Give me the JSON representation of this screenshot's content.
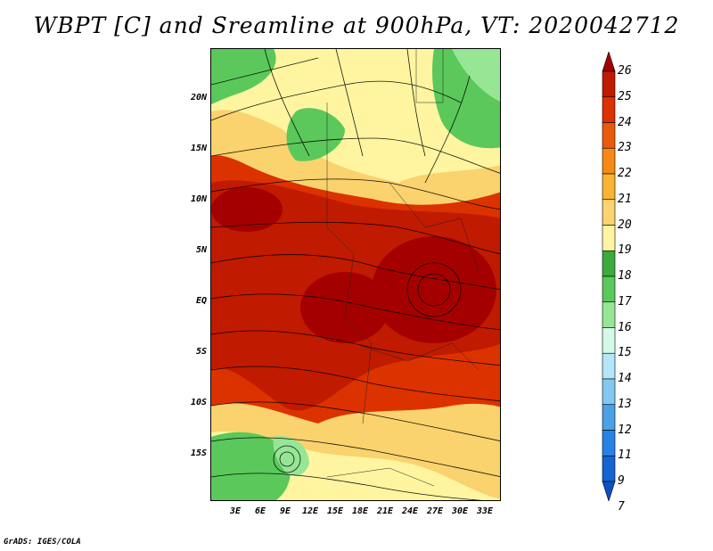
{
  "title": "WBPT [C] and Sreamline at 900hPa, VT: 2020042712",
  "lat_ticks": [
    "20N",
    "15N",
    "10N",
    "5N",
    "EQ",
    "5S",
    "10S",
    "15S"
  ],
  "lon_ticks": [
    "3E",
    "6E",
    "9E",
    "12E",
    "15E",
    "18E",
    "21E",
    "24E",
    "27E",
    "30E",
    "33E"
  ],
  "colorbar": {
    "levels": [
      "26",
      "25",
      "24",
      "23",
      "22",
      "21",
      "20",
      "19",
      "18",
      "17",
      "16",
      "15",
      "14",
      "13",
      "12",
      "11",
      "9",
      "7"
    ],
    "colors": [
      "#a50000",
      "#c01a00",
      "#dc3200",
      "#ea5a0a",
      "#f78a14",
      "#fab432",
      "#fad26e",
      "#fff5a0",
      "#3caa3c",
      "#5ac85a",
      "#96e696",
      "#d2fae6",
      "#b4e6fa",
      "#82c8f0",
      "#4ba0e6",
      "#2882e6",
      "#1464d2",
      "#0a50c8"
    ]
  },
  "credit": "GrADS: IGES/COLA"
}
